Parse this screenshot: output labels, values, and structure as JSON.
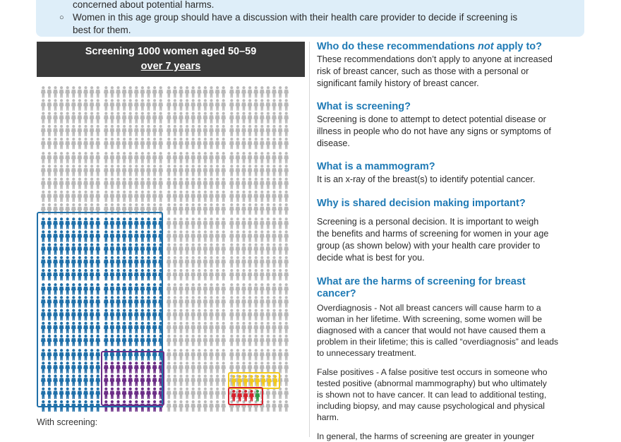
{
  "top_box": {
    "line0": "concerned about potential harms.",
    "line1": "Women in this age group should have a discussion with their health care provider to decide if screening is",
    "line2": "best for them.",
    "bullet": "○"
  },
  "pictogram": {
    "title_line1": "Screening 1000 women aged 50–59",
    "title_line2": "over 7 years",
    "legend_label": "With screening:",
    "colors": {
      "grey": "#b9b9b9",
      "blue": "#1f6fa8",
      "purple": "#6b2d86",
      "yellow": "#f3c91b",
      "red": "#d5212c",
      "green": "#2e9b45"
    }
  },
  "right": {
    "q1_pre": "Who do these recommendations ",
    "q1_em": "not",
    "q1_post": " apply to?",
    "p1_l1": "These recommendations don’t apply to anyone at increased",
    "p1_l2": "risk of breast cancer, such as those with a personal or",
    "p1_l3": "significant family history of breast cancer.",
    "q2": "What is screening?",
    "p2_l1": "Screening is done to attempt to detect potential disease or",
    "p2_l2": "illness in people who do not have any signs or symptoms of",
    "p2_l3": "disease.",
    "q3": "What is a mammogram?",
    "p3_l1": "It is an x-ray of the breast(s) to identify potential  cancer.",
    "q4": "Why is shared decision making important?",
    "p4_l1": "Screening is a personal decision. It is important to weigh",
    "p4_l2": "the benefits and harms of screening for women in your age",
    "p4_l3": "group (as shown below) with your health care provider to",
    "p4_l4": "decide what is best for you.",
    "q5_l1": "What are the harms of screening for breast",
    "q5_l2": "cancer?",
    "p5_l1": "Overdiagnosis - Not all breast cancers will cause harm to a",
    "p5_l2": "woman in her lifetime. With screening, some women will be",
    "p5_l3": "diagnosed with a cancer that would not have caused them a",
    "p5_l4": "problem in their lifetime; this is called “overdiagnosis” and leads",
    "p5_l5": "to unnecessary treatment.",
    "p6_l1": "False positives - A false positive test occurs in someone who",
    "p6_l2": "tested positive (abnormal mammography) but who ultimately",
    "p6_l3": "is shown not to have cancer. It can lead to additional testing,",
    "p6_l4": "including biopsy, and may cause psychological and physical",
    "p6_l5": "harm.",
    "p7_l1": "In general, the harms of screening are greater in younger"
  }
}
